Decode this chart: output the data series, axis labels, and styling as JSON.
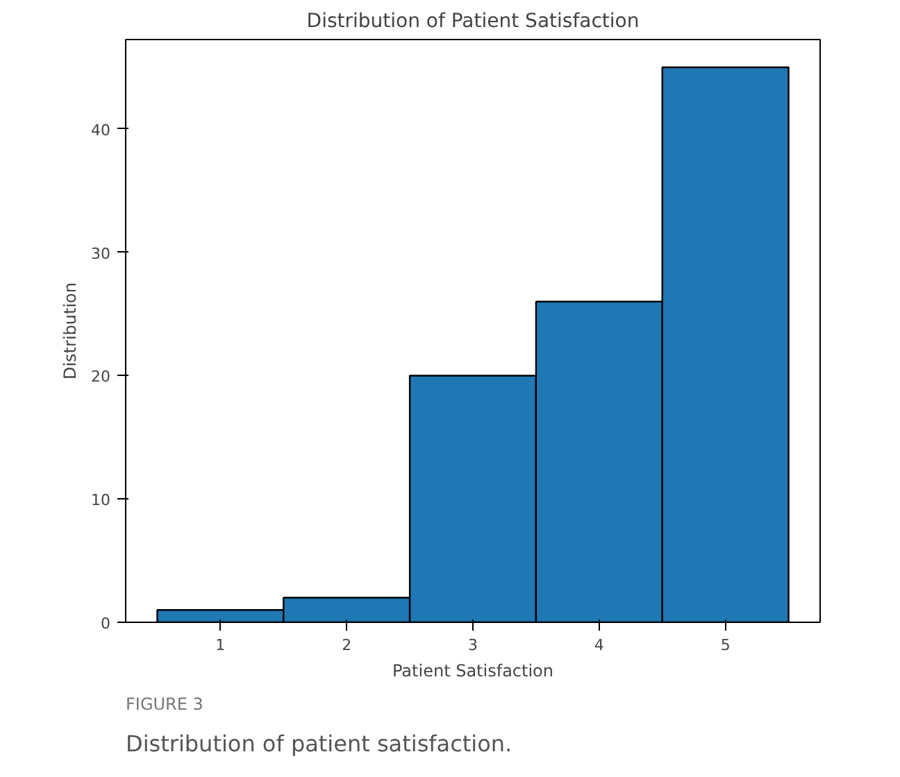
{
  "chart_data": {
    "type": "histogram",
    "title": "Distribution of Patient Satisfaction",
    "xlabel": "Patient Satisfaction",
    "ylabel": "Distribution",
    "bins": [
      0.5,
      1.5,
      2.5,
      3.5,
      4.5,
      5.5
    ],
    "values": [
      1,
      2,
      20,
      26,
      45
    ],
    "color": "#1f77b4",
    "xlim": [
      0.25,
      5.75
    ],
    "xticks": [
      1,
      2,
      3,
      4,
      5
    ],
    "ylim": [
      0,
      47.25
    ],
    "yticks": [
      0,
      10,
      20,
      30,
      40
    ],
    "grid": false,
    "annotations": [
      "FIGURE 3",
      "Distribution of patient satisfaction."
    ]
  }
}
